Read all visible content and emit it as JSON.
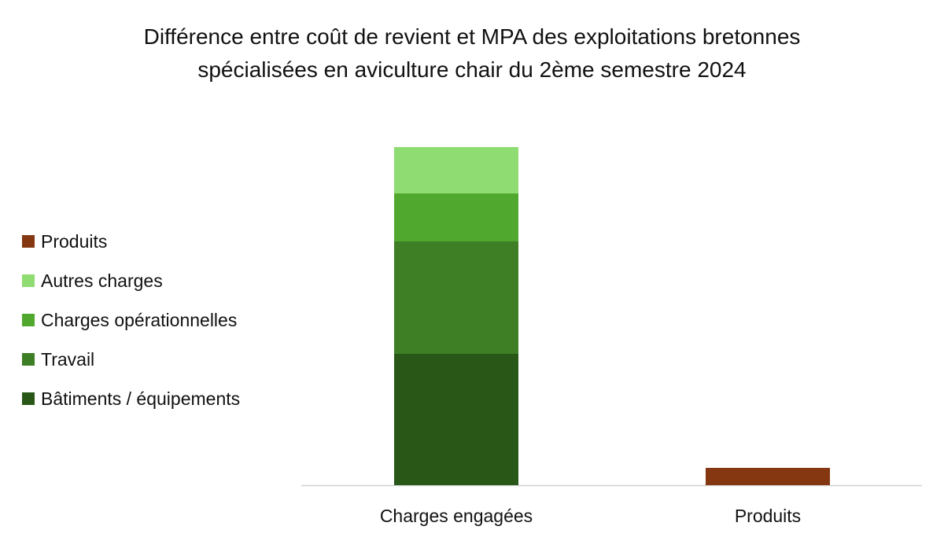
{
  "chart_data": {
    "type": "bar",
    "stacked": true,
    "title_lines": [
      "Différence entre coût de revient et MPA des exploitations bretonnes",
      "spécialisées en aviculture chair du 2ème semestre 2024"
    ],
    "categories": [
      "Charges engagées",
      "Produits"
    ],
    "series": [
      {
        "name": "Bâtiments / équipements",
        "color": "#295718",
        "values": [
          167,
          0
        ]
      },
      {
        "name": "Travail",
        "color": "#3e7e24",
        "values": [
          143,
          0
        ]
      },
      {
        "name": "Charges opérationnelles",
        "color": "#50a82f",
        "values": [
          61,
          0
        ]
      },
      {
        "name": "Autres charges",
        "color": "#8fdc72",
        "values": [
          59,
          0
        ]
      },
      {
        "name": "Produits",
        "color": "#843710",
        "values": [
          0,
          22
        ]
      }
    ],
    "legend_order": [
      "Produits",
      "Autres charges",
      "Charges opérationnelles",
      "Travail",
      "Bâtiments / équipements"
    ],
    "ylim": [
      0,
      430
    ],
    "y_axis_shown": false,
    "grid": false,
    "legend_position": "left"
  }
}
